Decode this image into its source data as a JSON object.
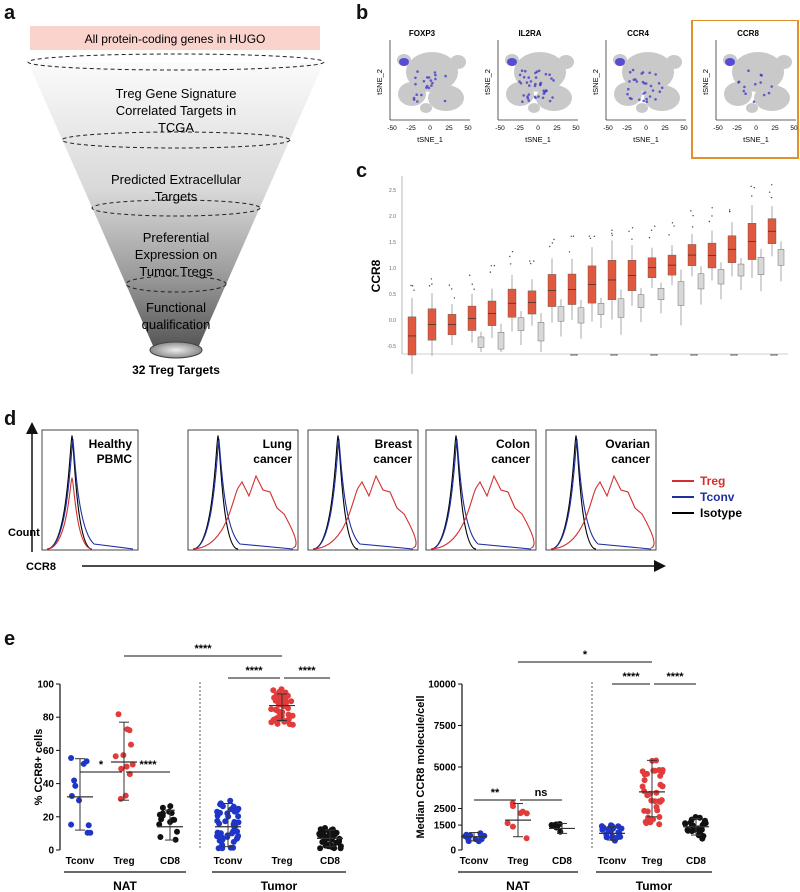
{
  "panel_labels": {
    "a": "a",
    "b": "b",
    "c": "c",
    "d": "d",
    "e": "e"
  },
  "funnel": {
    "top_label": "All protein-coding genes in HUGO",
    "stages": [
      [
        "Treg Gene Signature",
        "Correlated Targets in",
        "TCGA"
      ],
      [
        "Predicted Extracellular",
        "Targets"
      ],
      [
        "Preferential",
        "Expression on",
        "Tumor Tregs"
      ],
      [
        "Functional",
        "qualification"
      ]
    ],
    "result": "32 Treg Targets"
  },
  "tsne": {
    "genes": [
      "FOXP3",
      "IL2RA",
      "CCR4",
      "CCR8"
    ],
    "xlabel": "tSNE_1",
    "ylabel": "tSNE_2",
    "xticks": [
      "-50",
      "-25",
      "0",
      "25",
      "50"
    ],
    "highlighted": "CCR8"
  },
  "boxplot": {
    "ylabel": "CCR8",
    "yticks": [
      "2.5",
      "2.0",
      "1.5",
      "1.0",
      "0.5",
      "0.0",
      "-0.5"
    ]
  },
  "histograms": {
    "panels": [
      {
        "title": [
          "Healthy",
          "PBMC"
        ]
      },
      {
        "title": [
          "Lung",
          "cancer"
        ]
      },
      {
        "title": [
          "Breast",
          "cancer"
        ]
      },
      {
        "title": [
          "Colon",
          "cancer"
        ]
      },
      {
        "title": [
          "Ovarian",
          "cancer"
        ]
      }
    ],
    "y_axis": "Count",
    "x_axis": "CCR8",
    "legend": [
      {
        "label": "Treg",
        "color": "#d32f2f"
      },
      {
        "label": "Tconv",
        "color": "#1f2f9f"
      },
      {
        "label": "Isotype",
        "color": "#000000"
      }
    ]
  },
  "chart_data": [
    {
      "type": "scatter",
      "title": "",
      "ylabel": "% CCR8+ cells",
      "ylim": [
        0,
        100
      ],
      "yticks": [
        "0",
        "20",
        "40",
        "60",
        "80",
        "100"
      ],
      "categories": [
        "Tconv",
        "Treg",
        "CD8",
        "Tconv",
        "Treg",
        "CD8"
      ],
      "groups": [
        "NAT",
        "Tumor"
      ],
      "series": [
        {
          "name": "NAT Tconv",
          "color": "#1f35c8",
          "mean": 32,
          "sd_low": 12,
          "sd_high": 55
        },
        {
          "name": "NAT Treg",
          "color": "#e23b3b",
          "mean": 53,
          "sd_low": 30,
          "sd_high": 77
        },
        {
          "name": "NAT CD8",
          "color": "#111111",
          "mean": 14,
          "sd_low": 6,
          "sd_high": 24
        },
        {
          "name": "Tumor Tconv",
          "color": "#1f35c8",
          "mean": 14,
          "sd_low": 2,
          "sd_high": 28
        },
        {
          "name": "Tumor Treg",
          "color": "#e23b3b",
          "mean": 87,
          "sd_low": 78,
          "sd_high": 94
        },
        {
          "name": "Tumor CD8",
          "color": "#111111",
          "mean": 7,
          "sd_low": 2,
          "sd_high": 12
        }
      ],
      "significance": [
        "*",
        "****",
        "****",
        "****",
        "****"
      ]
    },
    {
      "type": "scatter",
      "title": "",
      "ylabel": "Median CCR8 molecule/cell",
      "ylim": [
        0,
        10000
      ],
      "yticks": [
        "0",
        "1500",
        "2500",
        "5000",
        "7500",
        "10000"
      ],
      "categories": [
        "Tconv",
        "Treg",
        "CD8",
        "Tconv",
        "Treg",
        "CD8"
      ],
      "groups": [
        "NAT",
        "Tumor"
      ],
      "series": [
        {
          "name": "NAT Tconv",
          "color": "#1f35c8",
          "mean": 800,
          "sd_low": 550,
          "sd_high": 1050
        },
        {
          "name": "NAT Treg",
          "color": "#e23b3b",
          "mean": 1800,
          "sd_low": 800,
          "sd_high": 2800
        },
        {
          "name": "NAT CD8",
          "color": "#111111",
          "mean": 1300,
          "sd_low": 1000,
          "sd_high": 1600
        },
        {
          "name": "Tumor Tconv",
          "color": "#1f35c8",
          "mean": 1000,
          "sd_low": 600,
          "sd_high": 1400
        },
        {
          "name": "Tumor Treg",
          "color": "#e23b3b",
          "mean": 3500,
          "sd_low": 2000,
          "sd_high": 5400
        },
        {
          "name": "Tumor CD8",
          "color": "#111111",
          "mean": 1400,
          "sd_low": 900,
          "sd_high": 1900
        }
      ],
      "significance": [
        "**",
        "ns",
        "*",
        "****",
        "****"
      ]
    }
  ]
}
